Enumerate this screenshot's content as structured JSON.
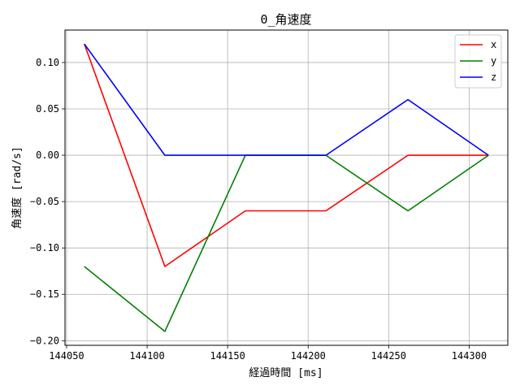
{
  "chart_data": {
    "type": "line",
    "title": "0_角速度",
    "xlabel": "経過時間 [ms]",
    "ylabel": "角速度 [rad/s]",
    "x": [
      144061,
      144111,
      144161,
      144211,
      144262,
      144312
    ],
    "series": [
      {
        "name": "x",
        "color": "#ff0000",
        "values": [
          0.12,
          -0.12,
          -0.06,
          -0.06,
          0.0,
          0.0
        ]
      },
      {
        "name": "y",
        "color": "#008000",
        "values": [
          -0.12,
          -0.19,
          0.0,
          0.0,
          -0.06,
          0.0
        ]
      },
      {
        "name": "z",
        "color": "#0000ff",
        "values": [
          0.12,
          0.0,
          0.0,
          0.0,
          0.06,
          0.0
        ]
      }
    ],
    "xlim": [
      144049,
      144324
    ],
    "ylim": [
      -0.205,
      0.135
    ],
    "xticks": [
      {
        "value": 144050,
        "label": "144050"
      },
      {
        "value": 144100,
        "label": "144100"
      },
      {
        "value": 144150,
        "label": "144150"
      },
      {
        "value": 144200,
        "label": "144200"
      },
      {
        "value": 144250,
        "label": "144250"
      },
      {
        "value": 144300,
        "label": "144300"
      }
    ],
    "yticks": [
      {
        "value": 0.1,
        "label": "0.10"
      },
      {
        "value": 0.05,
        "label": "0.05"
      },
      {
        "value": 0.0,
        "label": "0.00"
      },
      {
        "value": -0.05,
        "label": "−0.05"
      },
      {
        "value": -0.1,
        "label": "−0.10"
      },
      {
        "value": -0.15,
        "label": "−0.15"
      },
      {
        "value": -0.2,
        "label": "−0.20"
      }
    ],
    "grid": true,
    "legend_position": "top-right"
  }
}
